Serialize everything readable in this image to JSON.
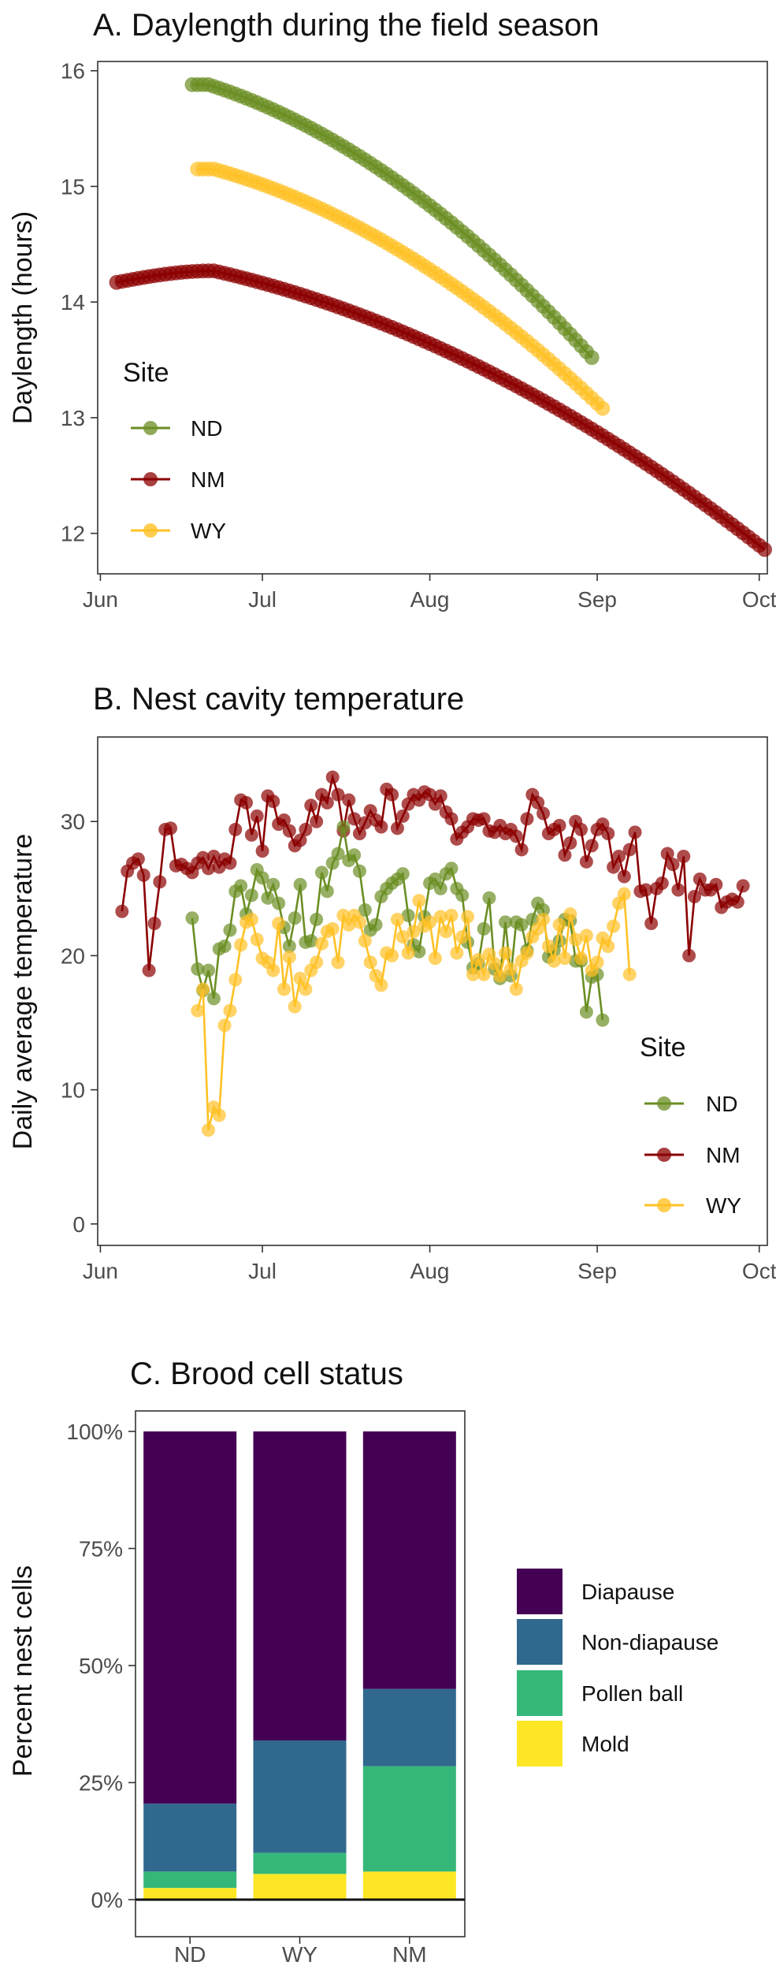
{
  "panels": {
    "a": {
      "title": "A. Daylength during the field season"
    },
    "b": {
      "title": "B. Nest cavity temperature"
    },
    "c": {
      "title": "C. Brood cell status"
    }
  },
  "chart_data": [
    {
      "id": "A",
      "type": "line",
      "title": "A. Daylength during the field season",
      "xlabel": "",
      "ylabel": "Daylength (hours)",
      "x_unit": "days since Jun 1",
      "x_ticks": [
        {
          "label": "Jun",
          "value": 0
        },
        {
          "label": "Jul",
          "value": 30
        },
        {
          "label": "Aug",
          "value": 61
        },
        {
          "label": "Sep",
          "value": 92
        },
        {
          "label": "Oct",
          "value": 122
        }
      ],
      "xlim": [
        -0.5,
        123.5
      ],
      "y_ticks": [
        12,
        13,
        14,
        15,
        16
      ],
      "ylim": [
        11.65,
        16.08
      ],
      "legend": {
        "title": "Site",
        "position": "left-inside",
        "entries": [
          "ND",
          "NM",
          "WY"
        ]
      },
      "series": [
        {
          "name": "ND",
          "color": "#6B8E23",
          "x_start": 17,
          "x_end": 91,
          "peak_x": 20,
          "peak_y": 15.88,
          "end_y": 13.52
        },
        {
          "name": "NM",
          "color": "#8B0000",
          "x_start": 3,
          "x_end": 123,
          "start_y": 14.17,
          "peak_x": 21,
          "peak_y": 14.27,
          "end_y": 11.86
        },
        {
          "name": "WY",
          "color": "#FFC125",
          "x_start": 18,
          "x_end": 93,
          "peak_x": 21,
          "peak_y": 15.15,
          "end_y": 13.08
        }
      ]
    },
    {
      "id": "B",
      "type": "line",
      "title": "B. Nest cavity temperature",
      "xlabel": "",
      "ylabel": "Daily average temperature",
      "x_unit": "days since Jun 1",
      "x_ticks": [
        {
          "label": "Jun",
          "value": 0
        },
        {
          "label": "Jul",
          "value": 30
        },
        {
          "label": "Aug",
          "value": 61
        },
        {
          "label": "Sep",
          "value": 92
        },
        {
          "label": "Oct",
          "value": 122
        }
      ],
      "xlim": [
        -0.5,
        123.5
      ],
      "y_ticks": [
        0,
        10,
        20,
        30
      ],
      "ylim": [
        -1.6,
        36.3
      ],
      "legend": {
        "title": "Site",
        "position": "right-inside",
        "entries": [
          "ND",
          "NM",
          "WY"
        ]
      },
      "series": [
        {
          "name": "NM",
          "color": "#8B0000",
          "x_start": 4,
          "values": [
            23.3,
            26.3,
            26.9,
            27.2,
            26.0,
            18.9,
            22.4,
            25.5,
            29.4,
            29.5,
            26.7,
            26.8,
            26.5,
            26.2,
            26.9,
            27.3,
            26.5,
            27.4,
            26.6,
            27.2,
            26.9,
            29.4,
            31.6,
            31.4,
            29.0,
            30.4,
            27.8,
            31.9,
            31.5,
            29.8,
            30.1,
            29.3,
            28.2,
            28.6,
            29.4,
            31.2,
            30.0,
            32.0,
            31.4,
            33.3,
            32.0,
            29.3,
            31.6,
            30.2,
            29.1,
            29.9,
            30.8,
            30.1,
            29.6,
            32.4,
            32.0,
            29.5,
            30.4,
            31.3,
            32.0,
            31.6,
            32.2,
            32.0,
            31.3,
            31.9,
            30.7,
            30.2,
            28.7,
            29.2,
            29.6,
            30.2,
            30.1,
            30.2,
            29.3,
            29.2,
            29.7,
            29.1,
            29.4,
            28.9,
            27.9,
            30.2,
            32.0,
            31.4,
            30.6,
            29.1,
            29.4,
            29.7,
            27.5,
            28.4,
            30.0,
            29.4,
            27.0,
            28.2,
            29.4,
            29.8,
            29.1,
            26.6,
            27.4,
            25.9,
            27.9,
            29.2,
            24.8,
            24.9,
            22.4,
            25.0,
            25.4,
            27.6,
            26.8,
            24.9,
            27.4,
            20.0,
            24.4,
            25.7,
            24.9,
            24.9,
            25.3,
            23.6,
            24.0,
            24.2,
            24.0,
            25.2
          ]
        },
        {
          "name": "ND",
          "color": "#6B8E23",
          "x_start": 17,
          "values": [
            22.8,
            19.0,
            17.4,
            18.9,
            16.8,
            20.5,
            20.7,
            21.9,
            24.8,
            25.2,
            23.1,
            24.5,
            26.4,
            25.8,
            24.3,
            25.3,
            23.9,
            22.1,
            20.7,
            22.8,
            25.3,
            21.0,
            21.1,
            22.7,
            26.2,
            24.8,
            26.9,
            27.6,
            29.6,
            27.1,
            27.5,
            26.3,
            23.4,
            21.9,
            22.3,
            24.4,
            25.0,
            25.4,
            25.7,
            26.1,
            23.0,
            20.8,
            20.3,
            22.9,
            25.4,
            25.7,
            25.0,
            26.1,
            26.5,
            25.0,
            24.5,
            21.0,
            19.1,
            19.4,
            22.0,
            24.3,
            19.0,
            18.3,
            22.5,
            18.5,
            22.5,
            22.3,
            20.4,
            22.7,
            23.9,
            23.4,
            19.9,
            20.4,
            21.1,
            22.7,
            22.6,
            19.6,
            19.6,
            15.8,
            18.4,
            18.6,
            15.2
          ]
        },
        {
          "name": "WY",
          "color": "#FFC125",
          "x_start": 18,
          "values": [
            15.9,
            17.5,
            7.0,
            8.7,
            8.1,
            14.8,
            15.9,
            18.2,
            20.8,
            22.5,
            22.7,
            21.2,
            19.8,
            19.5,
            18.9,
            22.4,
            17.5,
            19.9,
            16.2,
            18.3,
            17.5,
            18.9,
            19.5,
            20.9,
            21.8,
            22.0,
            19.5,
            23.0,
            22.3,
            23.0,
            22.5,
            21.1,
            19.5,
            18.5,
            17.8,
            20.2,
            20.0,
            22.7,
            21.4,
            20.2,
            21.8,
            24.1,
            22.2,
            22.5,
            19.8,
            22.9,
            21.8,
            23.0,
            20.2,
            21.4,
            22.9,
            18.6,
            19.7,
            18.6,
            20.1,
            19.4,
            18.5,
            20.2,
            19.0,
            17.5,
            19.6,
            20.2,
            21.4,
            22.0,
            22.7,
            20.7,
            19.6,
            22.3,
            19.8,
            23.1,
            21.2,
            19.8,
            21.5,
            18.9,
            19.5,
            21.3,
            20.7,
            22.2,
            23.9,
            24.6,
            18.6
          ]
        }
      ]
    },
    {
      "id": "C",
      "type": "bar",
      "stacked": true,
      "title": "C. Brood cell status",
      "xlabel": "",
      "ylabel": "Percent nest cells",
      "categories": [
        "ND",
        "WY",
        "NM"
      ],
      "y_ticks": [
        "0%",
        "25%",
        "50%",
        "75%",
        "100%"
      ],
      "ylim": [
        0,
        100
      ],
      "legend": {
        "title": "",
        "position": "right",
        "entries": [
          "Diapause",
          "Non-diapause",
          "Pollen ball",
          "Mold"
        ]
      },
      "series": [
        {
          "name": "Mold",
          "color": "#FDE725",
          "values": [
            2.5,
            5.5,
            6.0
          ]
        },
        {
          "name": "Pollen ball",
          "color": "#35B779",
          "values": [
            3.5,
            4.5,
            22.5
          ]
        },
        {
          "name": "Non-diapause",
          "color": "#31688E",
          "values": [
            14.5,
            24.0,
            16.5
          ]
        },
        {
          "name": "Diapause",
          "color": "#440154",
          "values": [
            79.5,
            66.0,
            55.0
          ]
        }
      ]
    }
  ]
}
